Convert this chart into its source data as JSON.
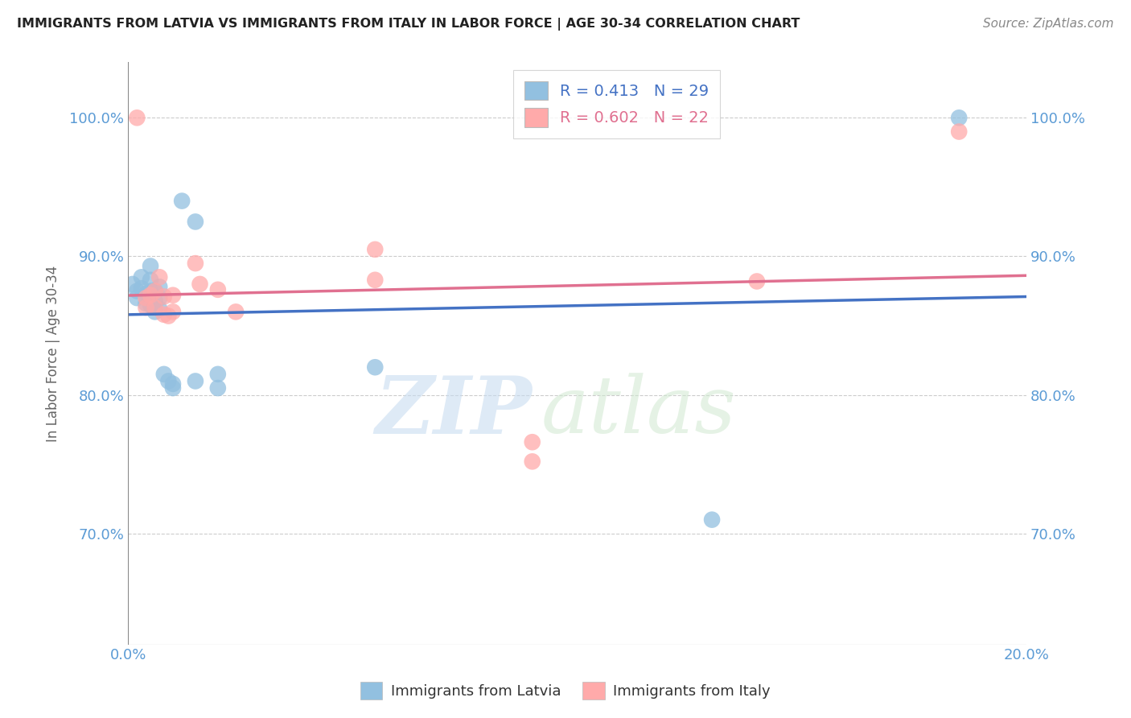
{
  "title": "IMMIGRANTS FROM LATVIA VS IMMIGRANTS FROM ITALY IN LABOR FORCE | AGE 30-34 CORRELATION CHART",
  "source": "Source: ZipAtlas.com",
  "ylabel": "In Labor Force | Age 30-34",
  "xlim": [
    0.0,
    0.2
  ],
  "ylim": [
    0.62,
    1.04
  ],
  "yticks": [
    0.7,
    0.8,
    0.9,
    1.0
  ],
  "yticklabels": [
    "70.0%",
    "80.0%",
    "90.0%",
    "100.0%"
  ],
  "legend_labels": [
    "Immigrants from Latvia",
    "Immigrants from Italy"
  ],
  "blue_color": "#92C0E0",
  "pink_color": "#FFAAAA",
  "blue_line_color": "#4472C4",
  "pink_line_color": "#E07090",
  "watermark_zip": "ZIP",
  "watermark_atlas": "atlas",
  "latvia_x": [
    0.001,
    0.002,
    0.002,
    0.003,
    0.003,
    0.004,
    0.004,
    0.005,
    0.005,
    0.005,
    0.005,
    0.006,
    0.006,
    0.006,
    0.007,
    0.007,
    0.007,
    0.008,
    0.009,
    0.01,
    0.01,
    0.012,
    0.015,
    0.015,
    0.02,
    0.02,
    0.055,
    0.13,
    0.185
  ],
  "latvia_y": [
    0.88,
    0.875,
    0.87,
    0.885,
    0.877,
    0.873,
    0.866,
    0.893,
    0.883,
    0.875,
    0.865,
    0.875,
    0.868,
    0.86,
    0.878,
    0.87,
    0.862,
    0.815,
    0.81,
    0.808,
    0.805,
    0.94,
    0.925,
    0.81,
    0.815,
    0.805,
    0.82,
    0.71,
    1.0
  ],
  "italy_x": [
    0.002,
    0.004,
    0.004,
    0.005,
    0.006,
    0.006,
    0.007,
    0.008,
    0.008,
    0.009,
    0.01,
    0.01,
    0.015,
    0.016,
    0.02,
    0.024,
    0.055,
    0.055,
    0.09,
    0.09,
    0.14,
    0.185
  ],
  "italy_y": [
    1.0,
    0.87,
    0.863,
    0.872,
    0.875,
    0.863,
    0.885,
    0.871,
    0.858,
    0.857,
    0.872,
    0.86,
    0.895,
    0.88,
    0.876,
    0.86,
    0.905,
    0.883,
    0.766,
    0.752,
    0.882,
    0.99
  ]
}
